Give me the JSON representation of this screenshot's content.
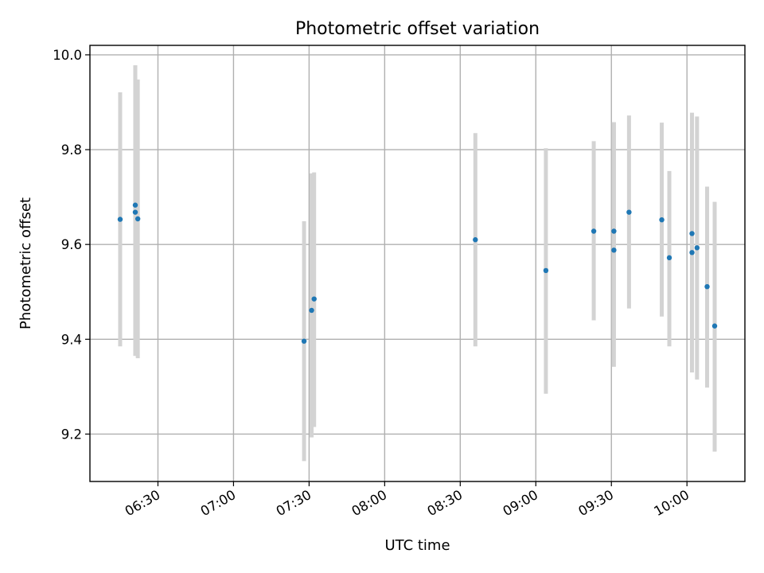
{
  "chart_data": {
    "type": "scatter",
    "title": "Photometric offset variation",
    "xlabel": "UTC time",
    "ylabel": "Photometric offset",
    "x_type": "time",
    "xlim": [
      "06:03",
      "10:23"
    ],
    "ylim": [
      9.1,
      10.02
    ],
    "x_ticks": [
      "06:30",
      "07:00",
      "07:30",
      "08:00",
      "08:30",
      "09:00",
      "09:30",
      "10:00"
    ],
    "y_ticks": [
      9.2,
      9.4,
      9.6,
      9.8,
      10.0
    ],
    "y_tick_labels": [
      "9.2",
      "9.4",
      "9.6",
      "9.8",
      "10.0"
    ],
    "grid": true,
    "series": [
      {
        "marker_color": "#1f77b4",
        "errorbar_color": "#d3d3d3",
        "points": [
          {
            "x": "06:15",
            "y": 9.653,
            "ylow": 9.385,
            "yhigh": 9.921
          },
          {
            "x": "06:21",
            "y": 9.683,
            "ylow": 9.365,
            "yhigh": 9.978
          },
          {
            "x": "06:21",
            "y": 9.668,
            "ylow": 9.365,
            "yhigh": 9.978
          },
          {
            "x": "06:22",
            "y": 9.654,
            "ylow": 9.36,
            "yhigh": 9.948
          },
          {
            "x": "07:28",
            "y": 9.396,
            "ylow": 9.143,
            "yhigh": 9.649
          },
          {
            "x": "07:31",
            "y": 9.461,
            "ylow": 9.193,
            "yhigh": 9.75
          },
          {
            "x": "07:32",
            "y": 9.485,
            "ylow": 9.215,
            "yhigh": 9.752
          },
          {
            "x": "08:36",
            "y": 9.61,
            "ylow": 9.385,
            "yhigh": 9.835
          },
          {
            "x": "09:04",
            "y": 9.545,
            "ylow": 9.285,
            "yhigh": 9.803
          },
          {
            "x": "09:23",
            "y": 9.628,
            "ylow": 9.44,
            "yhigh": 9.818
          },
          {
            "x": "09:31",
            "y": 9.588,
            "ylow": 9.342,
            "yhigh": 9.858
          },
          {
            "x": "09:31",
            "y": 9.628,
            "ylow": 9.4,
            "yhigh": 9.858
          },
          {
            "x": "09:37",
            "y": 9.668,
            "ylow": 9.465,
            "yhigh": 9.872
          },
          {
            "x": "09:50",
            "y": 9.652,
            "ylow": 9.448,
            "yhigh": 9.857
          },
          {
            "x": "09:53",
            "y": 9.572,
            "ylow": 9.385,
            "yhigh": 9.755
          },
          {
            "x": "10:02",
            "y": 9.623,
            "ylow": 9.335,
            "yhigh": 9.878
          },
          {
            "x": "10:02",
            "y": 9.583,
            "ylow": 9.33,
            "yhigh": 9.835
          },
          {
            "x": "10:04",
            "y": 9.593,
            "ylow": 9.315,
            "yhigh": 9.87
          },
          {
            "x": "10:08",
            "y": 9.511,
            "ylow": 9.298,
            "yhigh": 9.722
          },
          {
            "x": "10:11",
            "y": 9.428,
            "ylow": 9.163,
            "yhigh": 9.69
          }
        ]
      }
    ]
  }
}
